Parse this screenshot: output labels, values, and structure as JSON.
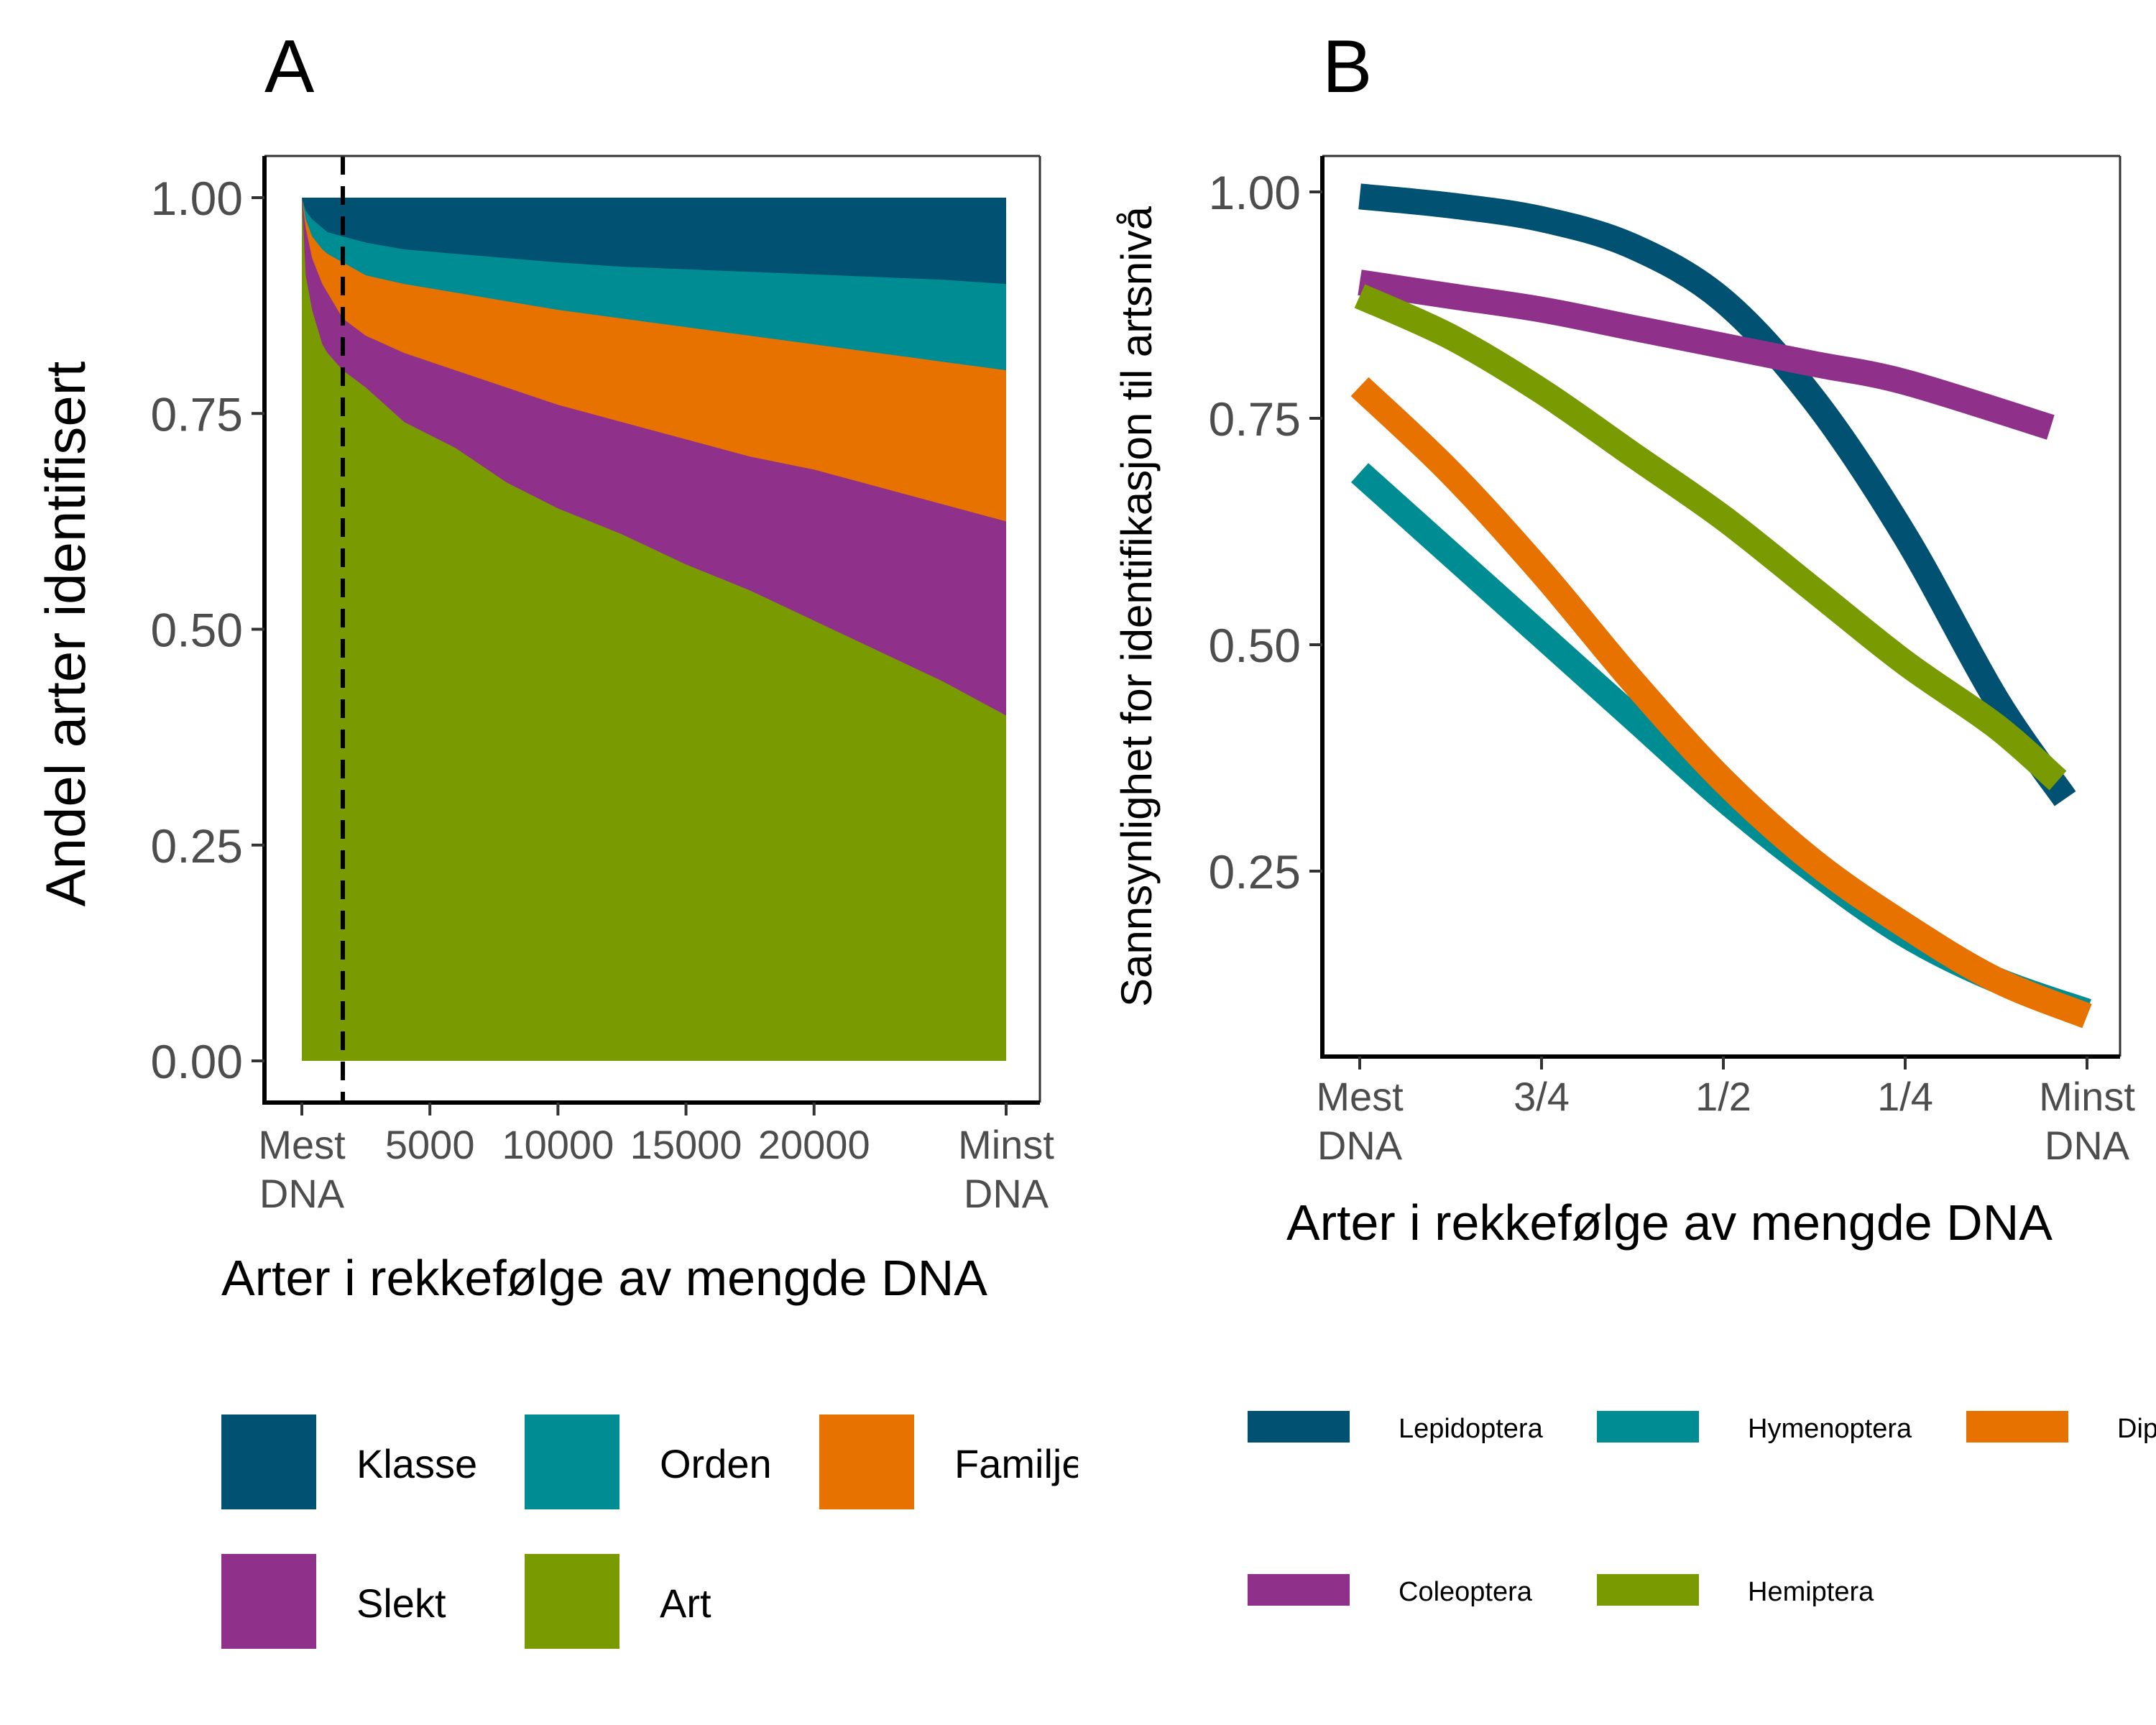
{
  "chart_data": [
    {
      "type": "area",
      "panel_label": "A",
      "title": "",
      "xlabel": "Arter i rekkefølge av mengde DNA",
      "ylabel": "Andel arter identifisert",
      "xlim": [
        0,
        27500
      ],
      "ylim": [
        0,
        1
      ],
      "x_ticks": [
        {
          "value": 0,
          "label": "Mest\nDNA"
        },
        {
          "value": 5000,
          "label": "5000"
        },
        {
          "value": 10000,
          "label": "10000"
        },
        {
          "value": 15000,
          "label": "15000"
        },
        {
          "value": 20000,
          "label": "20000"
        },
        {
          "value": 27500,
          "label": "Minst\nDNA"
        }
      ],
      "y_ticks": [
        {
          "value": 0,
          "label": "0.00"
        },
        {
          "value": 0.25,
          "label": "0.25"
        },
        {
          "value": 0.5,
          "label": "0.50"
        },
        {
          "value": 0.75,
          "label": "0.75"
        },
        {
          "value": 1,
          "label": "1.00"
        }
      ],
      "reference_line": {
        "x": 1600,
        "style": "dashed",
        "color": "#000000"
      },
      "x": [
        0,
        150,
        400,
        800,
        1000,
        1600,
        2500,
        4000,
        6000,
        8000,
        10000,
        12500,
        15000,
        17500,
        20000,
        22500,
        25000,
        27500
      ],
      "series": [
        {
          "name": "Art",
          "color": "#7a9a01",
          "cumulative_top": [
            1.0,
            0.91,
            0.87,
            0.83,
            0.82,
            0.8,
            0.78,
            0.74,
            0.71,
            0.67,
            0.64,
            0.61,
            0.575,
            0.545,
            0.51,
            0.475,
            0.44,
            0.4
          ]
        },
        {
          "name": "Slekt",
          "color": "#8f318b",
          "cumulative_top": [
            1.0,
            0.965,
            0.93,
            0.9,
            0.89,
            0.86,
            0.84,
            0.82,
            0.8,
            0.78,
            0.76,
            0.74,
            0.72,
            0.7,
            0.685,
            0.665,
            0.645,
            0.625
          ]
        },
        {
          "name": "Familje",
          "color": "#e77200",
          "cumulative_top": [
            1.0,
            0.975,
            0.955,
            0.94,
            0.935,
            0.925,
            0.91,
            0.9,
            0.89,
            0.88,
            0.87,
            0.86,
            0.85,
            0.84,
            0.83,
            0.82,
            0.81,
            0.8
          ]
        },
        {
          "name": "Orden",
          "color": "#008c93",
          "cumulative_top": [
            1.0,
            0.985,
            0.975,
            0.965,
            0.96,
            0.955,
            0.948,
            0.94,
            0.935,
            0.93,
            0.925,
            0.92,
            0.917,
            0.914,
            0.911,
            0.908,
            0.905,
            0.9
          ]
        },
        {
          "name": "Klasse",
          "color": "#005172",
          "cumulative_top": [
            1.0,
            1.0,
            1.0,
            1.0,
            1.0,
            1.0,
            1.0,
            1.0,
            1.0,
            1.0,
            1.0,
            1.0,
            1.0,
            1.0,
            1.0,
            1.0,
            1.0,
            1.0
          ]
        }
      ],
      "legend": {
        "position": "bottom",
        "entries": [
          "Klasse",
          "Orden",
          "Familje",
          "Slekt",
          "Art"
        ]
      }
    },
    {
      "type": "line",
      "panel_label": "B",
      "title": "",
      "xlabel": "Arter i rekkefølge av mengde DNA",
      "ylabel": "Sannsynlighet for identifikasjon til artsnivå",
      "xlim": [
        0,
        1
      ],
      "ylim": [
        0.08,
        1.04
      ],
      "x_ticks": [
        {
          "value": 0,
          "label": "Mest\nDNA"
        },
        {
          "value": 0.25,
          "label": "3/4"
        },
        {
          "value": 0.5,
          "label": "1/2"
        },
        {
          "value": 0.75,
          "label": "1/4"
        },
        {
          "value": 1,
          "label": "Minst\nDNA"
        }
      ],
      "y_ticks": [
        {
          "value": 0.25,
          "label": "0.25"
        },
        {
          "value": 0.5,
          "label": "0.50"
        },
        {
          "value": 0.75,
          "label": "0.75"
        },
        {
          "value": 1,
          "label": "1.00"
        }
      ],
      "series": [
        {
          "name": "Lepidoptera",
          "color": "#005172",
          "x": [
            0,
            0.125,
            0.25,
            0.375,
            0.5,
            0.625,
            0.75,
            0.875,
            0.97
          ],
          "y": [
            0.995,
            0.985,
            0.97,
            0.94,
            0.88,
            0.77,
            0.62,
            0.44,
            0.33
          ]
        },
        {
          "name": "Hymenoptera",
          "color": "#008c93",
          "x": [
            0,
            0.125,
            0.25,
            0.375,
            0.5,
            0.625,
            0.75,
            0.875,
            1
          ],
          "y": [
            0.69,
            0.6,
            0.51,
            0.42,
            0.33,
            0.25,
            0.18,
            0.13,
            0.095
          ]
        },
        {
          "name": "Diptera",
          "color": "#e77200",
          "x": [
            0,
            0.125,
            0.25,
            0.375,
            0.5,
            0.625,
            0.75,
            0.875,
            1
          ],
          "y": [
            0.785,
            0.69,
            0.58,
            0.46,
            0.35,
            0.26,
            0.19,
            0.13,
            0.09
          ]
        },
        {
          "name": "Coleoptera",
          "color": "#8f318b",
          "x": [
            0,
            0.125,
            0.25,
            0.375,
            0.5,
            0.625,
            0.75,
            0.95
          ],
          "y": [
            0.9,
            0.885,
            0.87,
            0.85,
            0.83,
            0.81,
            0.79,
            0.74
          ]
        },
        {
          "name": "Hemiptera",
          "color": "#7a9a01",
          "x": [
            0,
            0.125,
            0.25,
            0.375,
            0.5,
            0.625,
            0.75,
            0.875,
            0.96
          ],
          "y": [
            0.885,
            0.84,
            0.78,
            0.71,
            0.64,
            0.56,
            0.48,
            0.41,
            0.35
          ]
        }
      ],
      "legend": {
        "position": "bottom",
        "entries": [
          "Lepidoptera",
          "Hymenoptera",
          "Dip",
          "Coleoptera",
          "Hemiptera"
        ]
      }
    }
  ]
}
